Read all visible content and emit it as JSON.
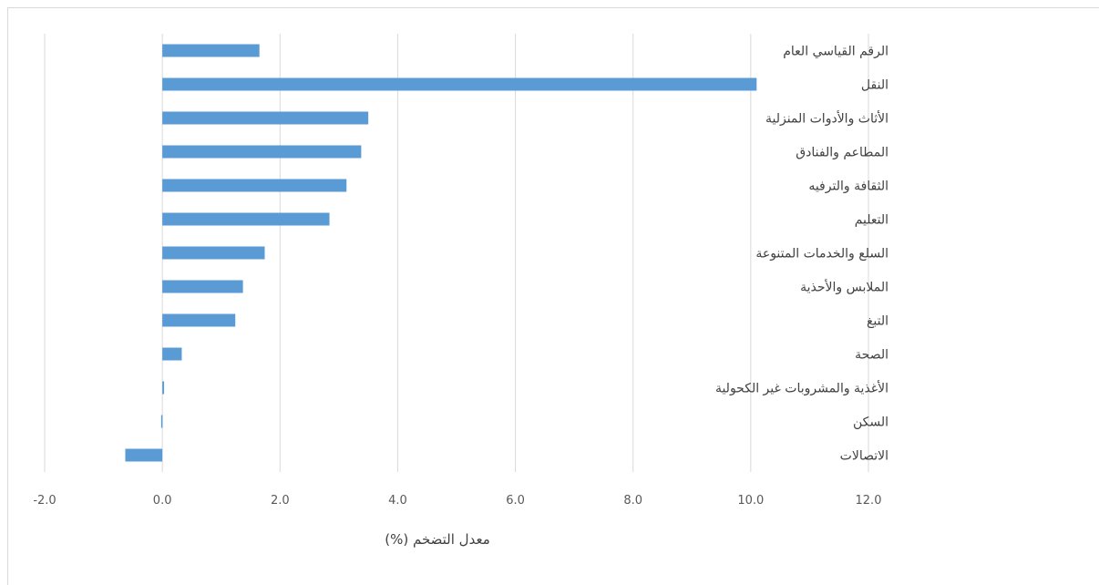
{
  "chart_data": {
    "type": "bar",
    "orientation": "horizontal",
    "categories": [
      "الرقم القياسي العام",
      "النقل",
      "الأثاث والأدوات المنزلية",
      "المطاعم والفنادق",
      "الثقافة والترفيه",
      "التعليم",
      "السلع والخدمات المتنوعة",
      "الملابس والأحذية",
      "التبغ",
      "الصحة",
      "الأغذية والمشروبات غير الكحولية",
      "السكن",
      "الاتصالات"
    ],
    "values": [
      1.65,
      10.1,
      3.5,
      3.38,
      3.13,
      2.84,
      1.74,
      1.37,
      1.24,
      0.33,
      0.03,
      -0.02,
      -0.63
    ],
    "xlabel": "معدل التضخم (%)",
    "ylabel": "",
    "xlim": [
      -2,
      12
    ],
    "ticks": [
      "-2.0",
      "0.0",
      "2.0",
      "4.0",
      "6.0",
      "8.0",
      "10.0",
      "12.0"
    ],
    "tick_values": [
      -2,
      0,
      2,
      4,
      6,
      8,
      10,
      12
    ],
    "grid": true,
    "legend": "none",
    "bar_color": "#5b9bd5",
    "grid_color": "#d9d9d9"
  }
}
